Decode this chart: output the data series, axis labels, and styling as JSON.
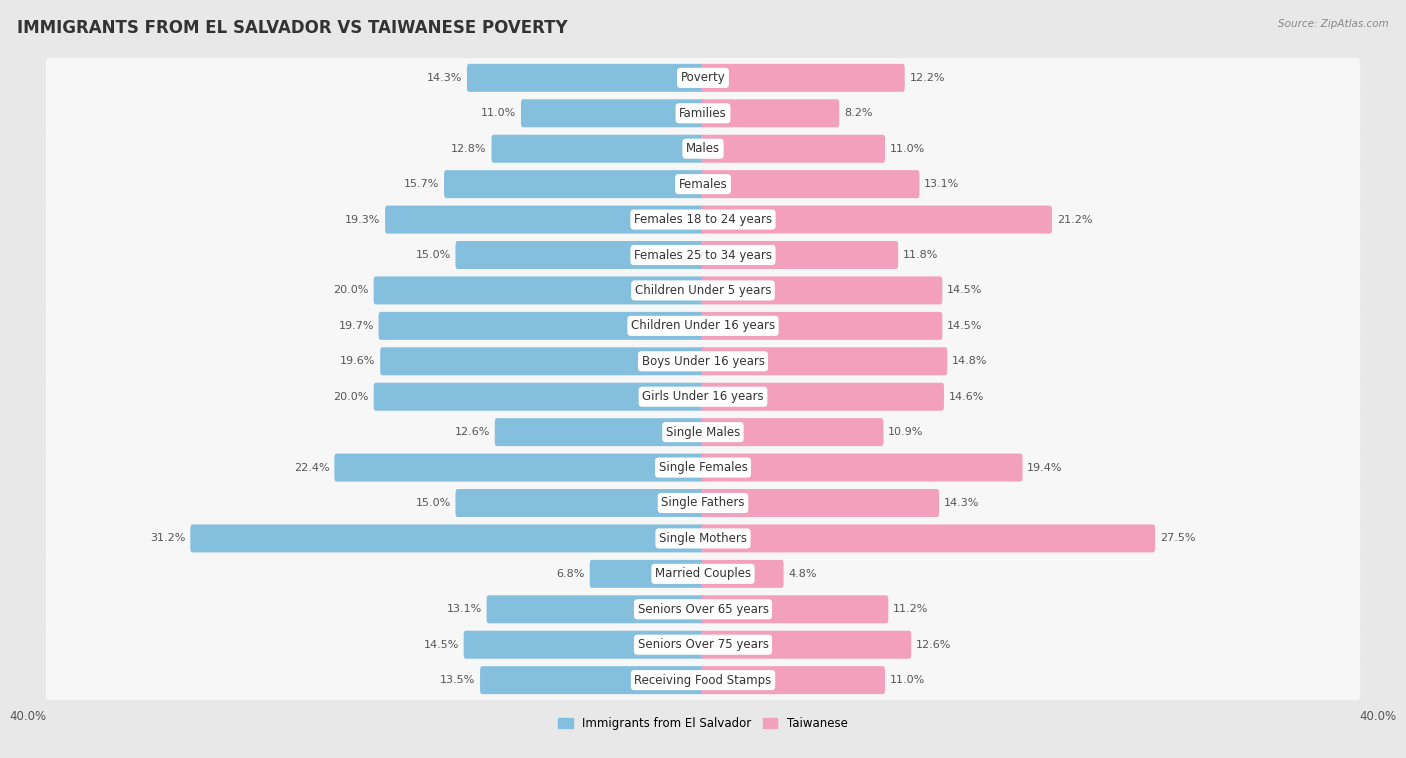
{
  "title": "IMMIGRANTS FROM EL SALVADOR VS TAIWANESE POVERTY",
  "source": "Source: ZipAtlas.com",
  "categories": [
    "Poverty",
    "Families",
    "Males",
    "Females",
    "Females 18 to 24 years",
    "Females 25 to 34 years",
    "Children Under 5 years",
    "Children Under 16 years",
    "Boys Under 16 years",
    "Girls Under 16 years",
    "Single Males",
    "Single Females",
    "Single Fathers",
    "Single Mothers",
    "Married Couples",
    "Seniors Over 65 years",
    "Seniors Over 75 years",
    "Receiving Food Stamps"
  ],
  "left_values": [
    14.3,
    11.0,
    12.8,
    15.7,
    19.3,
    15.0,
    20.0,
    19.7,
    19.6,
    20.0,
    12.6,
    22.4,
    15.0,
    31.2,
    6.8,
    13.1,
    14.5,
    13.5
  ],
  "right_values": [
    12.2,
    8.2,
    11.0,
    13.1,
    21.2,
    11.8,
    14.5,
    14.5,
    14.8,
    14.6,
    10.9,
    19.4,
    14.3,
    27.5,
    4.8,
    11.2,
    12.6,
    11.0
  ],
  "left_color": "#85bfde",
  "right_color": "#f2a0bb",
  "background_color": "#e8e8e8",
  "bar_background": "#f7f7f7",
  "max_val": 40.0,
  "legend_left": "Immigrants from El Salvador",
  "legend_right": "Taiwanese",
  "title_fontsize": 12,
  "label_fontsize": 8.5,
  "value_fontsize": 8.0
}
